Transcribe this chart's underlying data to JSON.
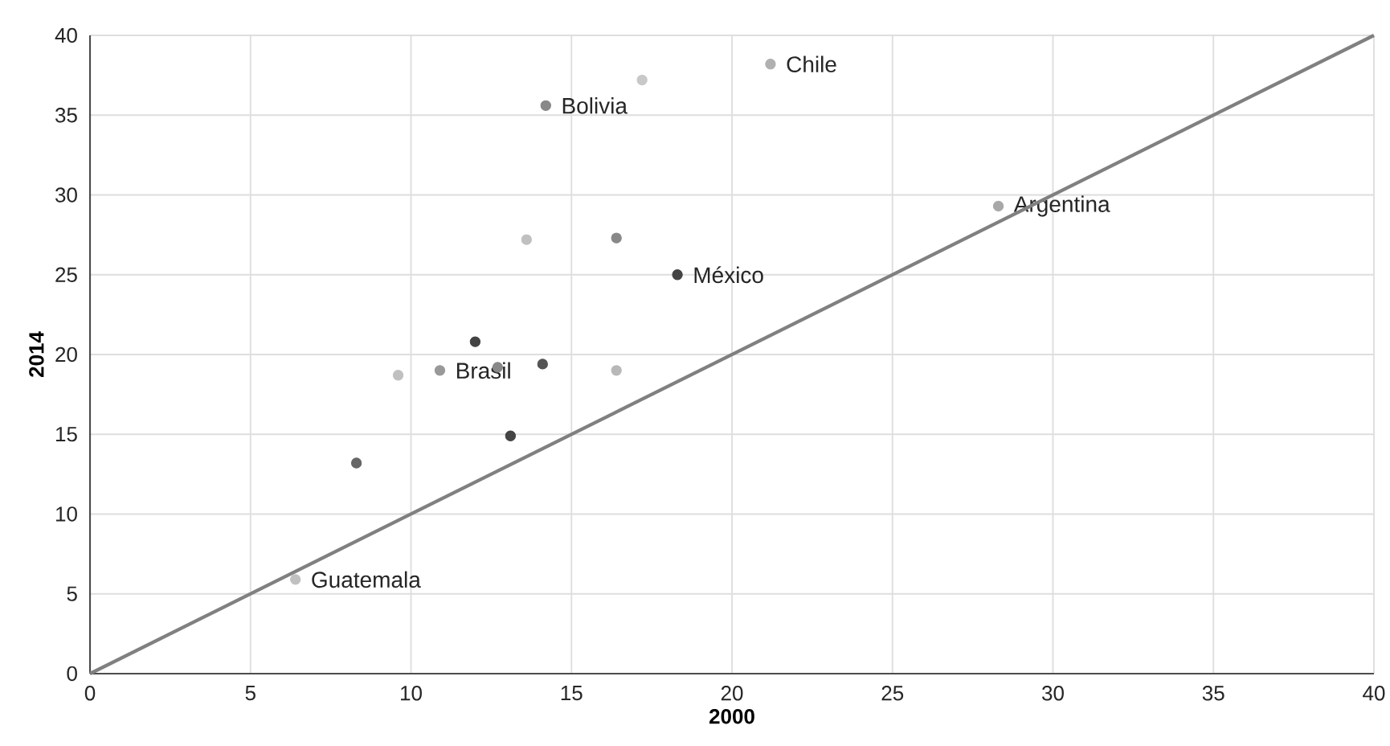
{
  "chart_data": {
    "type": "scatter",
    "xlabel": "2000",
    "ylabel": "2014",
    "xlim": [
      0,
      40
    ],
    "ylim": [
      0,
      40
    ],
    "xticks": [
      0,
      5,
      10,
      15,
      20,
      25,
      30,
      35,
      40
    ],
    "yticks": [
      0,
      5,
      10,
      15,
      20,
      25,
      30,
      35,
      40
    ],
    "grid": true,
    "marker": "circle",
    "series": [
      {
        "x": [
          14.2,
          17.2,
          21.2,
          28.3,
          18.3,
          16.4,
          13.6,
          12.0,
          14.1,
          16.4,
          10.9,
          12.7,
          9.6,
          13.1,
          8.3,
          6.4
        ],
        "values": [
          35.6,
          37.2,
          38.2,
          29.3,
          25.0,
          27.3,
          27.2,
          20.8,
          19.4,
          19.0,
          19.0,
          19.2,
          18.7,
          14.9,
          13.2,
          5.9
        ],
        "colors": [
          "#888888",
          "#c8c8c8",
          "#b0b0b0",
          "#a8a8a8",
          "#444444",
          "#888888",
          "#c0c0c0",
          "#444444",
          "#555555",
          "#b8b8b8",
          "#999999",
          "#888888",
          "#c0c0c0",
          "#444444",
          "#666666",
          "#c0c0c0"
        ],
        "value_labels": [
          "Bolivia",
          null,
          "Chile",
          "Argentina",
          "México",
          null,
          null,
          null,
          null,
          null,
          "Brasil",
          null,
          null,
          null,
          null,
          "Guatemala"
        ]
      },
      {
        "type": "line",
        "x": [
          0,
          40
        ],
        "values": [
          0,
          40
        ],
        "color": "#808080",
        "line_style": "solid",
        "marker": "none"
      }
    ]
  }
}
